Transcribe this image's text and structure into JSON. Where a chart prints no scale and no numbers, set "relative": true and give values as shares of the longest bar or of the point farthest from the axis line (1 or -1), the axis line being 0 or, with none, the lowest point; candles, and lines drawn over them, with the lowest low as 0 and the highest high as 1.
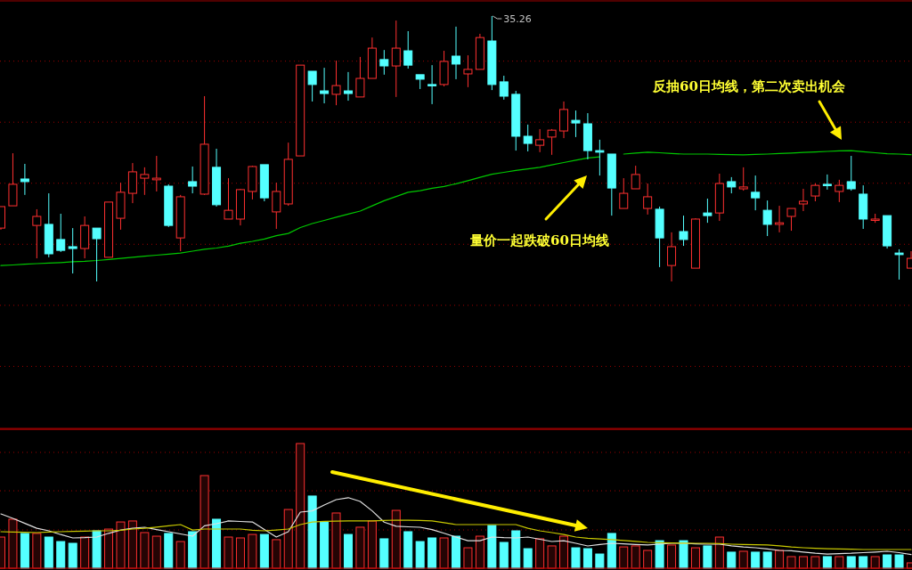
{
  "chart_data": [
    {
      "type": "candlestick",
      "relative": true,
      "categories": [
        null,
        null,
        null,
        null,
        null,
        null,
        null,
        null,
        null,
        null,
        null,
        null,
        null,
        null,
        null,
        null,
        null,
        null,
        null,
        null,
        null,
        null,
        null,
        null,
        null,
        null,
        null,
        null,
        null,
        null,
        null,
        null,
        null,
        null,
        null,
        null,
        null,
        null,
        null,
        null,
        null,
        null,
        null,
        null,
        null,
        null,
        null,
        null,
        null,
        null,
        null,
        null,
        null,
        null,
        null,
        null,
        null,
        null,
        null,
        null,
        null,
        null,
        null,
        null,
        null,
        null,
        null,
        null,
        null,
        null,
        null,
        null,
        null,
        null,
        null,
        null,
        null
      ],
      "ohlc": [
        [
          0.201,
          0.282,
          0.195,
          0.282
        ],
        [
          0.285,
          0.483,
          0.285,
          0.366
        ],
        [
          0.386,
          0.443,
          0.326,
          0.376
        ],
        [
          0.211,
          0.272,
          0.087,
          0.245
        ],
        [
          0.215,
          0.332,
          0.091,
          0.104
        ],
        [
          0.158,
          0.255,
          0.111,
          0.117
        ],
        [
          0.131,
          0.201,
          0.03,
          0.124
        ],
        [
          0.124,
          0.245,
          0.087,
          0.211
        ],
        [
          0.201,
          0.201,
          0,
          0.161
        ],
        [
          0.091,
          0.299,
          0.091,
          0.299
        ],
        [
          0.238,
          0.372,
          0.195,
          0.336
        ],
        [
          0.332,
          0.446,
          0.295,
          0.413
        ],
        [
          0.389,
          0.43,
          0.326,
          0.403
        ],
        [
          0.383,
          0.473,
          0.339,
          0.389
        ],
        [
          0.359,
          0.366,
          0.205,
          0.211
        ],
        [
          0.164,
          0.326,
          0.114,
          0.319
        ],
        [
          0.376,
          0.433,
          0.332,
          0.359
        ],
        [
          0.329,
          0.698,
          0.326,
          0.517
        ],
        [
          0.43,
          0.5,
          0.282,
          0.289
        ],
        [
          0.235,
          0.389,
          0.235,
          0.268
        ],
        [
          0.235,
          0.349,
          0.211,
          0.346
        ],
        [
          0.339,
          0.436,
          0.309,
          0.433
        ],
        [
          0.44,
          0.44,
          0.302,
          0.315
        ],
        [
          0.262,
          0.372,
          0.198,
          0.339
        ],
        [
          0.292,
          0.523,
          0.285,
          0.46
        ],
        [
          0.473,
          0.815,
          0.473,
          0.815
        ],
        [
          0.792,
          0.792,
          0.678,
          0.742
        ],
        [
          0.718,
          0.805,
          0.671,
          0.708
        ],
        [
          0.705,
          0.832,
          0.664,
          0.738
        ],
        [
          0.718,
          0.789,
          0.681,
          0.708
        ],
        [
          0.695,
          0.846,
          0.695,
          0.765
        ],
        [
          0.765,
          0.919,
          0.765,
          0.879
        ],
        [
          0.836,
          0.872,
          0.779,
          0.812
        ],
        [
          0.812,
          0.983,
          0.695,
          0.879
        ],
        [
          0.869,
          0.943,
          0.802,
          0.815
        ],
        [
          0.779,
          0.779,
          0.725,
          0.762
        ],
        [
          0.742,
          0.815,
          0.668,
          0.738
        ],
        [
          0.742,
          0.869,
          0.735,
          0.829
        ],
        [
          0.849,
          0.96,
          0.762,
          0.819
        ],
        [
          0.782,
          0.852,
          0.732,
          0.799
        ],
        [
          0.799,
          0.933,
          0.799,
          0.919
        ],
        [
          0.906,
          1,
          0.721,
          0.742
        ],
        [
          0.752,
          0.775,
          0.685,
          0.698
        ],
        [
          0.705,
          0.718,
          0.493,
          0.547
        ],
        [
          0.547,
          0.591,
          0.49,
          0.52
        ],
        [
          0.513,
          0.574,
          0.487,
          0.534
        ],
        [
          0.544,
          0.574,
          0.477,
          0.57
        ],
        [
          0.567,
          0.678,
          0.54,
          0.648
        ],
        [
          0.607,
          0.644,
          0.544,
          0.597
        ],
        [
          0.594,
          0.634,
          0.46,
          0.493
        ],
        [
          0.493,
          0.534,
          0.399,
          0.487
        ],
        [
          0.48,
          0.48,
          0.248,
          0.352
        ],
        [
          0.275,
          0.389,
          0.275,
          0.332
        ],
        [
          0.349,
          0.436,
          0.349,
          0.403
        ],
        [
          0.275,
          0.369,
          0.252,
          0.319
        ],
        [
          0.272,
          0.282,
          0.054,
          0.164
        ],
        [
          0.06,
          0.185,
          0,
          0.131
        ],
        [
          0.188,
          0.248,
          0.134,
          0.158
        ],
        [
          0.05,
          0.238,
          0.05,
          0.235
        ],
        [
          0.258,
          0.312,
          0.221,
          0.248
        ],
        [
          0.258,
          0.406,
          0.228,
          0.369
        ],
        [
          0.376,
          0.393,
          0.332,
          0.356
        ],
        [
          0.349,
          0.43,
          0.342,
          0.356
        ],
        [
          0.336,
          0.399,
          0.268,
          0.315
        ],
        [
          0.268,
          0.305,
          0.171,
          0.215
        ],
        [
          0.215,
          0.285,
          0.185,
          0.221
        ],
        [
          0.245,
          0.275,
          0.191,
          0.275
        ],
        [
          0.292,
          0.349,
          0.265,
          0.302
        ],
        [
          0.322,
          0.369,
          0.302,
          0.362
        ],
        [
          0.366,
          0.403,
          0.346,
          0.362
        ],
        [
          0.339,
          0.383,
          0.299,
          0.362
        ],
        [
          0.376,
          0.473,
          0.342,
          0.349
        ],
        [
          0.329,
          0.362,
          0.198,
          0.235
        ],
        [
          0.232,
          0.255,
          0.221,
          0.235
        ],
        [
          0.248,
          0.248,
          0.124,
          0.134
        ],
        [
          0.107,
          0.121,
          0.007,
          0.101
        ],
        [
          0.05,
          0.114,
          0.05,
          0.087
        ]
      ],
      "series": [
        {
          "type": "line",
          "color": "#00c800",
          "values": [
            0.06,
            0.062,
            0.065,
            0.067,
            0.069,
            0.071,
            0.074,
            0.076,
            0.079,
            0.083,
            0.087,
            0.091,
            0.095,
            0.099,
            0.103,
            0.107,
            0.114,
            0.121,
            0.126,
            0.133,
            0.144,
            0.151,
            0.16,
            0.172,
            0.181,
            0.203,
            0.218,
            0.23,
            0.242,
            0.254,
            0.265,
            0.285,
            0.304,
            0.32,
            0.336,
            0.342,
            0.351,
            0.358,
            0.368,
            0.38,
            0.392,
            0.404,
            0.411,
            0.418,
            0.424,
            0.43,
            0.439,
            0.448,
            0.457,
            0.465,
            0.469,
            null,
            0.48,
            0.484,
            0.487,
            0.485,
            0.482,
            0.48,
            0.48,
            0.48,
            0.479,
            0.478,
            0.477,
            0.479,
            0.48,
            0.482,
            0.484,
            0.486,
            0.488,
            0.49,
            0.492,
            0.493,
            0.489,
            0.485,
            0.481,
            0.48,
            0.478
          ]
        }
      ],
      "ref_lines": [
        {
          "axis": "y",
          "value": 0.83,
          "color": "#a00000",
          "line_style": "dotted"
        },
        {
          "axis": "y",
          "value": 0.6,
          "color": "#a00000",
          "line_style": "dotted"
        },
        {
          "axis": "y",
          "value": 0.37,
          "color": "#a00000",
          "line_style": "dotted"
        },
        {
          "axis": "y",
          "value": 0.14,
          "color": "#a00000",
          "line_style": "dotted"
        },
        {
          "axis": "y",
          "value": -0.09,
          "color": "#a00000",
          "line_style": "dotted"
        },
        {
          "axis": "y",
          "value": -0.32,
          "color": "#a00000",
          "line_style": "dotted"
        }
      ],
      "annotations": [
        "35.26",
        "量价一起跌破60日均线",
        "反抽60日均线，第二次卖出机会"
      ]
    },
    {
      "type": "bar",
      "relative": true,
      "categories": [
        null,
        null,
        null,
        null,
        null,
        null,
        null,
        null,
        null,
        null,
        null,
        null,
        null,
        null,
        null,
        null,
        null,
        null,
        null,
        null,
        null,
        null,
        null,
        null,
        null,
        null,
        null,
        null,
        null,
        null,
        null,
        null,
        null,
        null,
        null,
        null,
        null,
        null,
        null,
        null,
        null,
        null,
        null,
        null,
        null,
        null,
        null,
        null,
        null,
        null,
        null,
        null,
        null,
        null,
        null,
        null,
        null,
        null,
        null,
        null,
        null,
        null,
        null,
        null,
        null,
        null,
        null,
        null,
        null,
        null,
        null,
        null,
        null,
        null,
        null,
        null,
        null
      ],
      "values": [
        0.25,
        0.393,
        0.279,
        0.279,
        0.25,
        0.214,
        0.2,
        0.25,
        0.3,
        0.314,
        0.371,
        0.379,
        0.286,
        0.257,
        0.279,
        0.214,
        0.293,
        0.743,
        0.393,
        0.25,
        0.243,
        0.271,
        0.271,
        0.229,
        0.471,
        1,
        0.579,
        0.371,
        0.443,
        0.271,
        0.329,
        0.379,
        0.236,
        0.464,
        0.293,
        0.214,
        0.243,
        0.243,
        0.257,
        0.164,
        0.257,
        0.343,
        0.207,
        0.3,
        0.157,
        0.236,
        0.179,
        0.257,
        0.164,
        0.157,
        0.114,
        0.279,
        0.171,
        0.179,
        0.143,
        0.221,
        0.186,
        0.221,
        0.164,
        0.179,
        0.25,
        0.129,
        0.136,
        0.129,
        0.129,
        0.143,
        0.093,
        0.093,
        0.093,
        0.093,
        0.093,
        0.093,
        0.093,
        0.093,
        0.107,
        0.107,
        0.043
      ],
      "colors": [
        "#ff3030",
        "#ff3030",
        "#54ffff",
        "#ff3030",
        "#54ffff",
        "#54ffff",
        "#54ffff",
        "#ff3030",
        "#54ffff",
        "#ff3030",
        "#ff3030",
        "#ff3030",
        "#ff3030",
        "#ff3030",
        "#54ffff",
        "#ff3030",
        "#54ffff",
        "#ff3030",
        "#54ffff",
        "#ff3030",
        "#ff3030",
        "#ff3030",
        "#54ffff",
        "#ff3030",
        "#ff3030",
        "#ff3030",
        "#54ffff",
        "#54ffff",
        "#ff3030",
        "#54ffff",
        "#ff3030",
        "#ff3030",
        "#54ffff",
        "#ff3030",
        "#54ffff",
        "#54ffff",
        "#54ffff",
        "#ff3030",
        "#54ffff",
        "#ff3030",
        "#ff3030",
        "#54ffff",
        "#54ffff",
        "#54ffff",
        "#54ffff",
        "#ff3030",
        "#ff3030",
        "#ff3030",
        "#54ffff",
        "#54ffff",
        "#54ffff",
        "#54ffff",
        "#ff3030",
        "#ff3030",
        "#ff3030",
        "#54ffff",
        "#ff3030",
        "#54ffff",
        "#ff3030",
        "#54ffff",
        "#ff3030",
        "#54ffff",
        "#ff3030",
        "#54ffff",
        "#54ffff",
        "#ff3030",
        "#ff3030",
        "#ff3030",
        "#ff3030",
        "#54ffff",
        "#ff3030",
        "#54ffff",
        "#54ffff",
        "#ff3030",
        "#54ffff",
        "#54ffff",
        "#ff3030"
      ],
      "ref_lines": [
        {
          "axis": "y",
          "value": 0.307,
          "color": "#a00000",
          "line_style": "dotted"
        },
        {
          "axis": "y",
          "value": 0.621,
          "color": "#a00000",
          "line_style": "dotted"
        },
        {
          "axis": "y",
          "value": 0.929,
          "color": "#a00000",
          "line_style": "dotted"
        }
      ]
    },
    {
      "type": "line",
      "relative": true,
      "categories": [
        null,
        null,
        null,
        null,
        null,
        null,
        null,
        null,
        null,
        null,
        null,
        null,
        null,
        null,
        null,
        null,
        null,
        null,
        null,
        null,
        null,
        null,
        null,
        null,
        null,
        null,
        null,
        null,
        null,
        null,
        null,
        null,
        null,
        null,
        null,
        null,
        null,
        null,
        null,
        null,
        null,
        null,
        null,
        null,
        null,
        null,
        null,
        null,
        null,
        null,
        null,
        null,
        null,
        null,
        null,
        null,
        null,
        null,
        null,
        null,
        null,
        null,
        null,
        null,
        null,
        null,
        null,
        null,
        null,
        null,
        null,
        null,
        null,
        null,
        null,
        null,
        null
      ],
      "series": [
        {
          "color": "#e0e0e0",
          "values": [
            0.77,
            0.707,
            0.636,
            0.567,
            0.53,
            0.477,
            0.429,
            0.433,
            0.442,
            0.495,
            0.542,
            0.565,
            0.581,
            0.548,
            0.518,
            0.486,
            0.454,
            0.601,
            0.631,
            0.67,
            0.663,
            0.655,
            0.548,
            0.442,
            0.518,
            0.795,
            0.813,
            0.896,
            0.972,
            1,
            0.947,
            0.813,
            0.654,
            0.594,
            0.587,
            0.581,
            0.548,
            0.495,
            0.442,
            0.39,
            0.39,
            0.442,
            0.433,
            0.429,
            0.442,
            0.41,
            0.378,
            0.39,
            0.353,
            0.316,
            0.336,
            0.353,
            0.345,
            0.336,
            0.329,
            0.341,
            0.353,
            0.353,
            0.346,
            0.341,
            0.341,
            0.318,
            0.3,
            0.29,
            0.274,
            0.253,
            0.247,
            0.23,
            0.212,
            0.201,
            0.207,
            0.212,
            0.221,
            0.23,
            0.24,
            0.221,
            0.194
          ]
        },
        {
          "color": "#c8c800",
          "values": [
            0.518,
            0.512,
            0.509,
            0.505,
            0.512,
            0.518,
            0.521,
            0.525,
            0.53,
            0.53,
            0.539,
            0.555,
            0.567,
            0.583,
            0.601,
            0.618,
            0.542,
            0.555,
            0.555,
            0.555,
            0.555,
            0.539,
            0.53,
            0.542,
            0.555,
            0.618,
            0.655,
            0.664,
            0.668,
            0.67,
            0.67,
            0.671,
            0.677,
            0.682,
            0.68,
            0.677,
            0.67,
            0.645,
            0.618,
            0.618,
            0.618,
            0.618,
            0.618,
            0.618,
            0.567,
            0.53,
            0.505,
            0.477,
            0.442,
            0.424,
            0.415,
            0.405,
            0.392,
            0.38,
            0.366,
            0.362,
            0.359,
            0.355,
            0.353,
            0.353,
            0.348,
            0.341,
            0.336,
            0.332,
            0.329,
            0.318,
            0.3,
            0.29,
            0.283,
            0.277,
            0.274,
            0.269,
            0.265,
            0.265,
            0.265,
            0.265,
            0.265
          ]
        }
      ]
    }
  ]
}
